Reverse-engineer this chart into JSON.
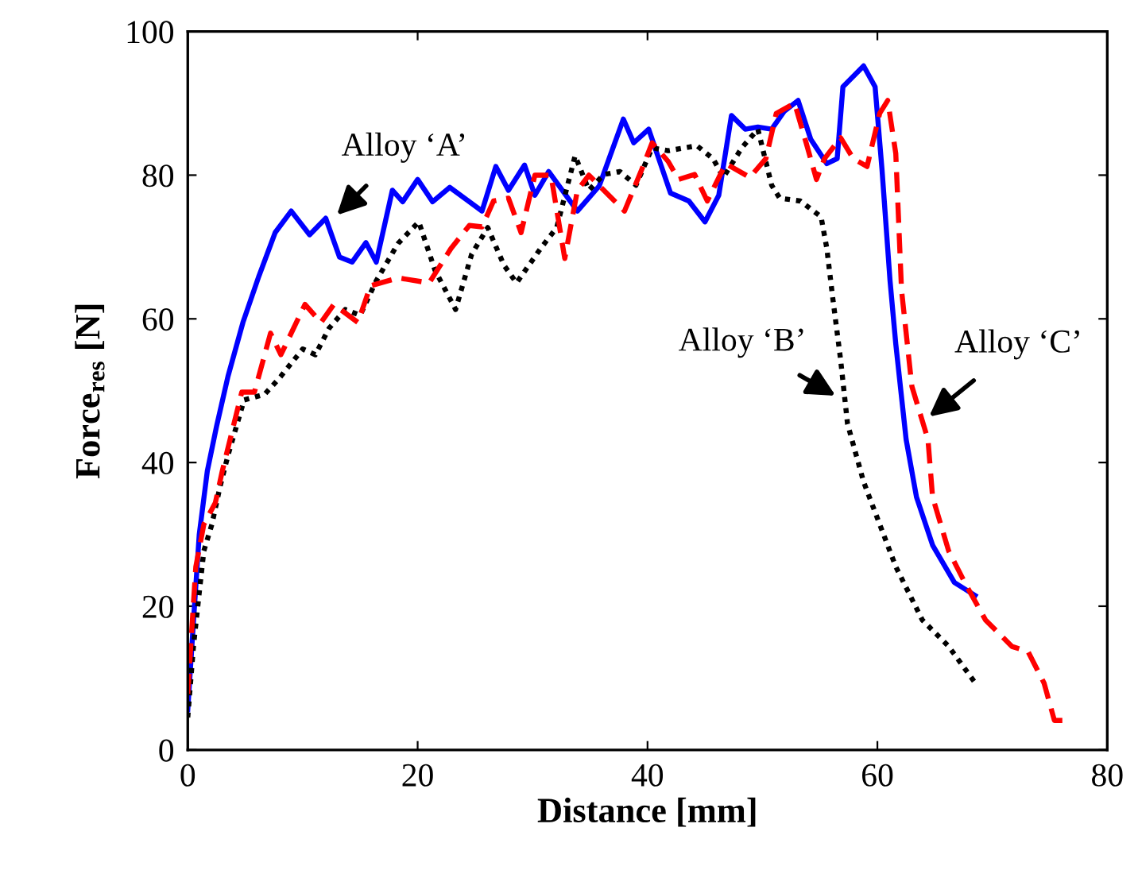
{
  "chart_data": {
    "type": "line",
    "xlabel": "Distance [mm]",
    "ylabel": "Force$_{res}$ [N]",
    "xlim": [
      0,
      80
    ],
    "xticks": [
      0,
      20,
      40,
      60,
      80
    ],
    "ylim": [
      0,
      100
    ],
    "yticks": [
      0,
      20,
      40,
      60,
      80,
      100
    ],
    "grid": false,
    "marker": "none",
    "series": [
      {
        "color": "#0000ff",
        "line_style": "solid",
        "x": [
          0,
          0.5,
          1,
          1.7,
          2.5,
          3.5,
          4.8,
          6.2,
          7.6,
          9.0,
          10.6,
          12,
          13.2,
          14.3,
          15.5,
          16.4,
          17.8,
          18.7,
          20,
          21.3,
          22.8,
          25.6,
          26.8,
          27.9,
          29.3,
          30.2,
          31.4,
          33.9,
          35.8,
          37.9,
          38.8,
          40.1,
          42,
          43.6,
          45,
          46.2,
          47.3,
          48.5,
          49.6,
          50.8,
          51.9,
          53.1,
          54.2,
          55.6,
          56.5,
          57,
          58.8,
          59.8,
          60.4,
          61.1,
          61.6,
          62.5,
          63.4,
          64.8,
          66.7,
          68.5
        ],
        "values": [
          5.6,
          18,
          30,
          38.8,
          45,
          52,
          59.5,
          66,
          72,
          75,
          71.7,
          74,
          68.6,
          67.9,
          70.6,
          67.9,
          77.9,
          76.3,
          79.4,
          76.3,
          78.3,
          75,
          81.2,
          77.9,
          81.4,
          77.2,
          80.5,
          75,
          78.5,
          87.8,
          84.5,
          86.4,
          77.5,
          76.4,
          73.5,
          77.2,
          88.3,
          86.4,
          86.7,
          86.4,
          88.9,
          90.4,
          85,
          81.6,
          82.3,
          92.3,
          95.2,
          92.3,
          80.8,
          65.3,
          56.5,
          43.2,
          35.2,
          28.5,
          23.3,
          21.5
        ]
      },
      {
        "color": "#000000",
        "line_style": "dotted",
        "x": [
          0,
          0.5,
          1,
          1.4,
          2.1,
          2.8,
          3.5,
          4.9,
          6.7,
          8.1,
          10,
          11.1,
          12.3,
          13.7,
          15,
          16.4,
          18.3,
          20.1,
          21.5,
          23.3,
          24.7,
          26.1,
          27.5,
          28.6,
          30.7,
          32.1,
          33.7,
          34.9,
          36.2,
          37.6,
          39,
          40.4,
          41.8,
          44.3,
          45.7,
          46.6,
          48.2,
          49.6,
          50.8,
          51.5,
          53.3,
          55.1,
          55.6,
          56.1,
          56.8,
          57.4,
          58.8,
          60.2,
          61.6,
          63.9,
          66.2,
          68.7
        ],
        "values": [
          4.5,
          14.5,
          21.9,
          27.7,
          31.4,
          36.6,
          41,
          48.7,
          49.5,
          52,
          55.8,
          55,
          58.7,
          61.3,
          60.5,
          65.3,
          70.5,
          73.5,
          66.8,
          61.3,
          69,
          72.7,
          67.5,
          65,
          69.8,
          72.7,
          82.7,
          77.9,
          80.1,
          80.5,
          78.6,
          83.8,
          83.4,
          84.1,
          82.3,
          79.7,
          83.8,
          86.4,
          78.6,
          76.8,
          76.4,
          74.2,
          69.8,
          63.1,
          54.3,
          45.4,
          37.3,
          31.4,
          25.5,
          18.1,
          14.4,
          8.9
        ]
      },
      {
        "color": "#ff0000",
        "line_style": "dashed",
        "x": [
          0,
          0.4,
          0.7,
          1.4,
          2.4,
          3,
          4.7,
          5.8,
          7.2,
          8.1,
          10.2,
          11.6,
          12.7,
          14.8,
          15.9,
          18.3,
          21,
          22.9,
          24.5,
          25.6,
          26.6,
          27.9,
          29,
          30.2,
          31.6,
          32.8,
          33.9,
          34.9,
          36.2,
          38,
          39.5,
          40.4,
          41.8,
          42.7,
          44.1,
          45.2,
          46.8,
          48.9,
          50.3,
          51.2,
          52.8,
          53.8,
          54.7,
          55.4,
          56.8,
          57.9,
          59.1,
          60.2,
          60.9,
          61.6,
          62.1,
          63,
          64.4,
          64.8,
          66.2,
          67.6,
          69.4,
          71.7,
          73.1,
          74.5,
          75.4,
          76.6
        ],
        "values": [
          7.8,
          18,
          25.5,
          31.4,
          34.4,
          38.8,
          49.8,
          49.8,
          58,
          55,
          62,
          59.5,
          62,
          59.5,
          64.6,
          65.7,
          65,
          69.8,
          73,
          72.8,
          76.4,
          76.8,
          72,
          80,
          80,
          68.4,
          77.9,
          80,
          77.9,
          75,
          80.8,
          84.5,
          81.9,
          79.4,
          80.1,
          76.4,
          81.6,
          79.7,
          82.3,
          88.6,
          90,
          84.5,
          79.4,
          82.3,
          85.2,
          82.3,
          81.2,
          88.6,
          90.4,
          83,
          64,
          50.6,
          43.2,
          35.2,
          27.7,
          23.3,
          18.1,
          14.4,
          13.7,
          9.3,
          4.1,
          4.1
        ]
      }
    ],
    "annotations": [
      {
        "text": "Alloy ‘A’",
        "x": 12.7,
        "y": 74
      },
      {
        "text": "Alloy ‘B’",
        "x": 56.7,
        "y": 49
      },
      {
        "text": "Alloy ‘C’",
        "x": 64.2,
        "y": 46
      }
    ]
  }
}
